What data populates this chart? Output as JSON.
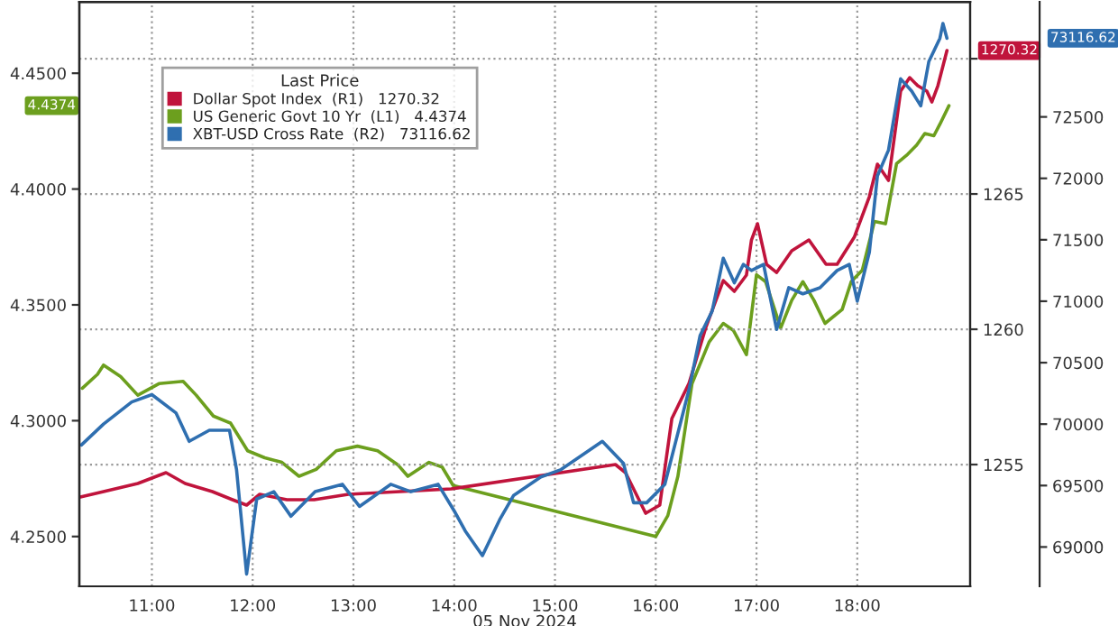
{
  "chart_data": {
    "type": "line",
    "xlabel": "05 Nov 2024",
    "legend_title": "Last Price",
    "legend": "top left",
    "grid": true,
    "line_style": "solid",
    "marker": "none",
    "xlim": [
      10.28,
      19.12
    ],
    "xticks": [
      {
        "value": 11,
        "label": "11:00"
      },
      {
        "value": 12,
        "label": "12:00"
      },
      {
        "value": 13,
        "label": "13:00"
      },
      {
        "value": 14,
        "label": "14:00"
      },
      {
        "value": 15,
        "label": "15:00"
      },
      {
        "value": 16,
        "label": "16:00"
      },
      {
        "value": 17,
        "label": "17:00"
      },
      {
        "value": 18,
        "label": "18:00"
      }
    ],
    "ylim": [
      4.2285,
      4.4808
    ],
    "yticks": [
      {
        "value": 4.25,
        "label": "4.2500"
      },
      {
        "value": 4.3,
        "label": "4.3000"
      },
      {
        "value": 4.35,
        "label": "4.3500"
      },
      {
        "value": 4.4,
        "label": "4.4000"
      },
      {
        "value": 4.45,
        "label": "4.4500"
      }
    ],
    "y2lim": [
      1250.5,
      1272.1
    ],
    "y2ticks": [
      1255,
      1260,
      1265,
      {
        "value": 1270,
        "label": null
      }
    ],
    "y3lim": [
      68680,
      73436
    ],
    "y3ticks": [
      69000,
      69500,
      70000,
      70500,
      71000,
      71500,
      72000,
      72500
    ],
    "series": [
      {
        "name": "Dollar Spot Index  (R1)   1270.32",
        "color": "#c0143c",
        "axis": "y2",
        "x": [
          10.29,
          10.52,
          10.86,
          11.14,
          11.33,
          11.6,
          11.8,
          11.94,
          12.07,
          12.34,
          12.61,
          12.95,
          13.97,
          15.6,
          15.7,
          15.9,
          16.04,
          16.16,
          16.33,
          16.5,
          16.67,
          16.78,
          16.9,
          16.95,
          17.01,
          17.1,
          17.2,
          17.35,
          17.52,
          17.69,
          17.8,
          17.97,
          18.12,
          18.2,
          18.31,
          18.43,
          18.52,
          18.6,
          18.69,
          18.74,
          18.8,
          18.89
        ],
        "values": [
          1253.8,
          1254.0,
          1254.3,
          1254.7,
          1254.3,
          1254.0,
          1253.7,
          1253.5,
          1253.9,
          1253.7,
          1253.7,
          1253.9,
          1254.1,
          1255.0,
          1254.7,
          1253.2,
          1253.5,
          1256.7,
          1258.0,
          1260.1,
          1261.8,
          1261.4,
          1262.0,
          1263.3,
          1263.9,
          1262.4,
          1262.1,
          1262.9,
          1263.3,
          1262.4,
          1262.4,
          1263.4,
          1264.9,
          1266.1,
          1265.5,
          1268.8,
          1269.3,
          1269.0,
          1268.8,
          1268.4,
          1269.0,
          1270.3
        ]
      },
      {
        "name": "US Generic Govt 10 Yr  (L1)   4.4374",
        "color": "#6c9f1e",
        "axis": "y",
        "x": [
          10.31,
          10.46,
          10.52,
          10.69,
          10.86,
          11.07,
          11.31,
          11.44,
          11.61,
          11.78,
          11.95,
          12.12,
          12.29,
          12.46,
          12.63,
          12.83,
          13.04,
          13.24,
          13.44,
          13.54,
          13.75,
          13.88,
          13.99,
          16.0,
          16.12,
          16.22,
          16.36,
          16.53,
          16.67,
          16.77,
          16.9,
          17.0,
          17.09,
          17.24,
          17.35,
          17.46,
          17.57,
          17.68,
          17.85,
          17.94,
          18.05,
          18.17,
          18.28,
          18.39,
          18.5,
          18.59,
          18.67,
          18.76,
          18.82,
          18.91
        ],
        "values": [
          4.314,
          4.32,
          4.324,
          4.319,
          4.311,
          4.316,
          4.317,
          4.311,
          4.302,
          4.299,
          4.287,
          4.284,
          4.282,
          4.276,
          4.279,
          4.287,
          4.289,
          4.287,
          4.281,
          4.276,
          4.282,
          4.28,
          4.272,
          4.25,
          4.259,
          4.276,
          4.316,
          4.334,
          4.342,
          4.339,
          4.3285,
          4.363,
          4.36,
          4.34,
          4.352,
          4.36,
          4.352,
          4.342,
          4.348,
          4.36,
          4.365,
          4.386,
          4.385,
          4.411,
          4.415,
          4.419,
          4.424,
          4.423,
          4.428,
          4.436
        ]
      },
      {
        "name": "XBT-USD Cross Rate  (R2)   73116.62",
        "color": "#2f6fb0",
        "axis": "y3",
        "x": [
          10.3,
          10.52,
          10.8,
          11.0,
          11.24,
          11.37,
          11.57,
          11.77,
          11.84,
          11.94,
          12.04,
          12.21,
          12.38,
          12.62,
          12.89,
          13.06,
          13.37,
          13.57,
          13.84,
          14.01,
          14.11,
          14.28,
          14.45,
          14.59,
          14.86,
          15.06,
          15.47,
          15.68,
          15.78,
          15.91,
          16.09,
          16.33,
          16.44,
          16.56,
          16.67,
          16.78,
          16.87,
          16.95,
          17.07,
          17.2,
          17.32,
          17.46,
          17.63,
          17.8,
          17.92,
          18.0,
          18.12,
          18.2,
          18.31,
          18.43,
          18.54,
          18.63,
          18.71,
          18.82,
          18.85,
          18.89
        ],
        "values": [
          69830,
          70000,
          70180,
          70240,
          70090,
          69860,
          69950,
          69950,
          69630,
          68780,
          69390,
          69450,
          69250,
          69450,
          69510,
          69330,
          69510,
          69450,
          69510,
          69280,
          69130,
          68930,
          69220,
          69420,
          69570,
          69630,
          69860,
          69680,
          69360,
          69360,
          69510,
          70280,
          70720,
          70920,
          71350,
          71150,
          71300,
          71250,
          71300,
          70770,
          71110,
          71060,
          71110,
          71250,
          71300,
          71000,
          71400,
          72020,
          72230,
          72810,
          72710,
          72590,
          72950,
          73140,
          73260,
          73140
        ]
      }
    ],
    "annotations": [
      "1270.32",
      "4.4374",
      "73116.62"
    ]
  }
}
